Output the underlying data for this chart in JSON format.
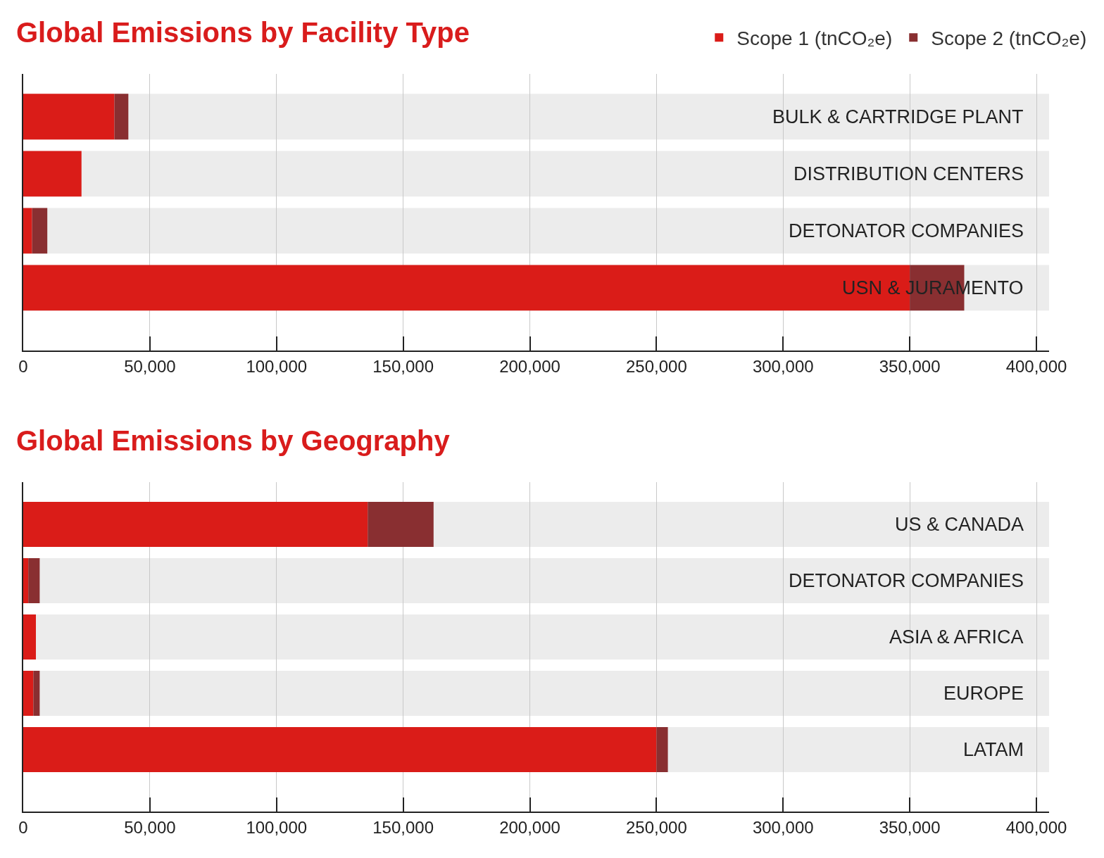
{
  "chart_data": [
    {
      "type": "bar",
      "title": "Global Emissions by Facility Type",
      "orientation": "horizontal",
      "stacked": true,
      "categories": [
        "BULK & CARTRIDGE PLANT",
        "DISTRIBUTION CENTERS",
        "DETONATOR COMPANIES",
        "USN & JURAMENTO"
      ],
      "series": [
        {
          "name": "Scope 1 (tnCO₂e)",
          "color": "#da1c18",
          "values": [
            36000,
            23000,
            3500,
            350000
          ]
        },
        {
          "name": "Scope 2 (tnCO₂e)",
          "color": "#892f31",
          "values": [
            5500,
            0,
            6000,
            21500
          ]
        }
      ],
      "xlim": [
        0,
        405000
      ],
      "xticks": [
        0,
        {
          "value": 50000,
          "label": "50,000"
        },
        {
          "value": 100000,
          "label": "100,000"
        },
        {
          "value": 150000,
          "label": "150,000"
        },
        {
          "value": 200000,
          "label": "200,000"
        },
        {
          "value": 250000,
          "label": "250,000"
        },
        {
          "value": 300000,
          "label": "300,000"
        },
        {
          "value": 350000,
          "label": "350,000"
        },
        {
          "value": 400000,
          "label": "400,000"
        }
      ],
      "grid": "x",
      "legend": "top right"
    },
    {
      "type": "bar",
      "title": "Global Emissions by Geography",
      "orientation": "horizontal",
      "stacked": true,
      "categories": [
        "US & CANADA",
        "DETONATOR COMPANIES",
        "ASIA & AFRICA",
        "EUROPE",
        "LATAM"
      ],
      "series": [
        {
          "color": "#da1c18",
          "values": [
            136000,
            2000,
            5000,
            4000,
            250000
          ]
        },
        {
          "color": "#892f31",
          "values": [
            26000,
            4500,
            0,
            2500,
            4500
          ]
        }
      ],
      "xlim": [
        0,
        405000
      ],
      "xticks": [
        0,
        {
          "value": 50000,
          "label": "50,000"
        },
        {
          "value": 100000,
          "label": "100,000"
        },
        {
          "value": 150000,
          "label": "150,000"
        },
        {
          "value": 200000,
          "label": "200,000"
        },
        {
          "value": 250000,
          "label": "250,000"
        },
        {
          "value": 300000,
          "label": "300,000"
        },
        {
          "value": 350000,
          "label": "350,000"
        },
        {
          "value": 400000,
          "label": "400,000"
        }
      ],
      "grid": "x"
    }
  ]
}
